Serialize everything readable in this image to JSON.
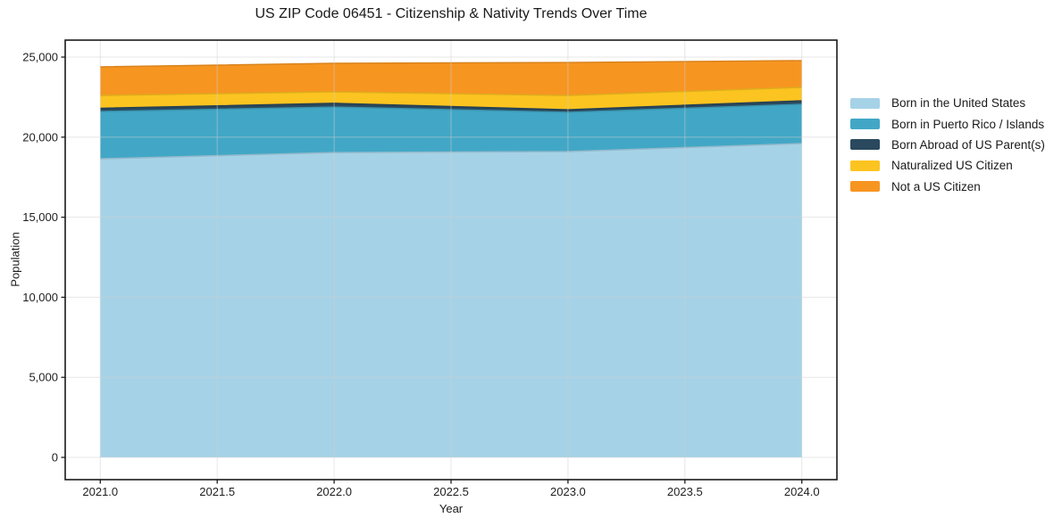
{
  "title": "US ZIP Code 06451 - Citizenship & Nativity Trends Over Time",
  "chart_data": {
    "type": "area",
    "stacked": true,
    "title": "US ZIP Code 06451 - Citizenship & Nativity Trends Over Time",
    "xlabel": "Year",
    "ylabel": "Population",
    "x": [
      2021,
      2022,
      2023,
      2024
    ],
    "x_ticks": [
      "2021.0",
      "2021.5",
      "2022.0",
      "2022.5",
      "2023.0",
      "2023.5",
      "2024.0"
    ],
    "y_ticks": [
      "0",
      "5,000",
      "10,000",
      "15,000",
      "20,000",
      "25,000"
    ],
    "xlim": [
      2020.85,
      2024.15
    ],
    "ylim": [
      -1390,
      26060
    ],
    "grid": true,
    "legend_position": "right-outside",
    "series": [
      {
        "name": "Born in the United States",
        "color": "#a6d2e7",
        "values": [
          18650,
          19040,
          19100,
          19600
        ]
      },
      {
        "name": "Born in Puerto Rico / Islands",
        "color": "#42a7c6",
        "values": [
          2950,
          2840,
          2450,
          2450
        ]
      },
      {
        "name": "Born Abroad of US Parent(s)",
        "color": "#2a495e",
        "values": [
          200,
          230,
          160,
          220
        ]
      },
      {
        "name": "Naturalized US Citizen",
        "color": "#fcc420",
        "values": [
          800,
          720,
          890,
          840
        ]
      },
      {
        "name": "Not a US Citizen",
        "color": "#f79521",
        "values": [
          1790,
          1780,
          2060,
          1670
        ]
      }
    ],
    "stacked_totals": [
      24390,
      24610,
      24660,
      24780
    ],
    "colors": {
      "grid": "#cfcfcf",
      "frame": "#1a1a1a",
      "background": "#ffffff"
    }
  }
}
